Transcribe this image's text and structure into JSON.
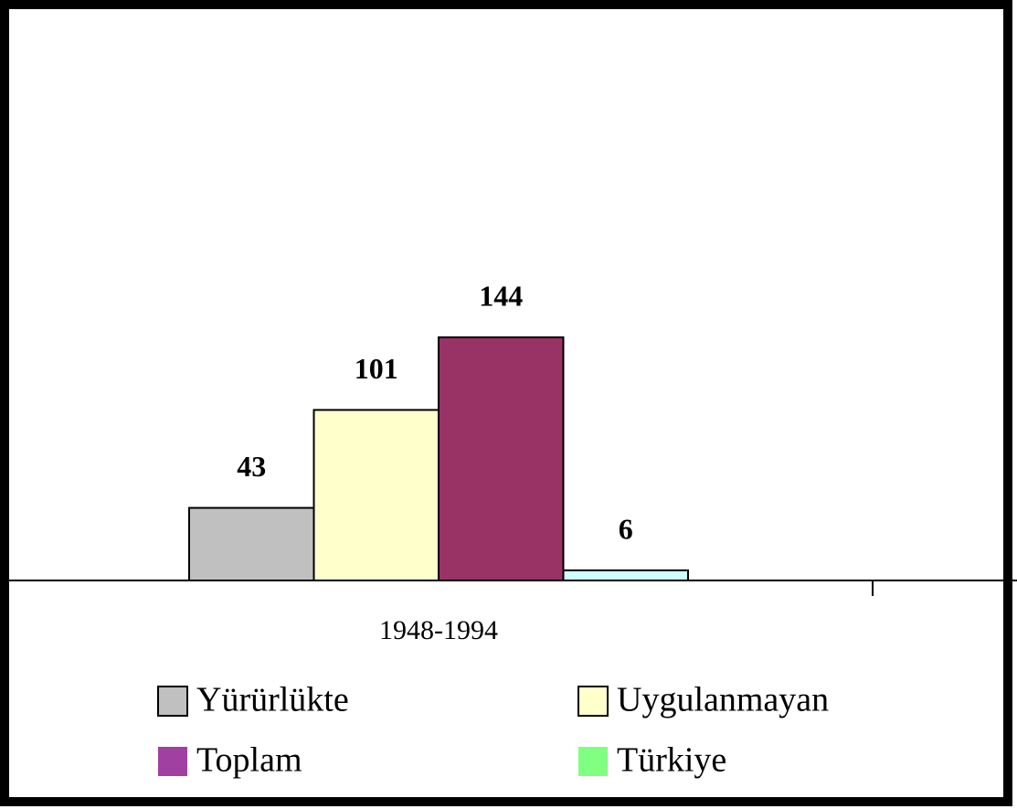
{
  "chart_data": {
    "type": "bar",
    "categories": [
      "1948-1994"
    ],
    "series": [
      {
        "name": "Yürürlükte",
        "color": "#c0c0c0",
        "legend_color": "#c0c0c0",
        "values": [
          43
        ]
      },
      {
        "name": "Uygulanmayan",
        "color": "#ffffcc",
        "legend_color": "#ffffcc",
        "values": [
          101
        ]
      },
      {
        "name": "Toplam",
        "color": "#993366",
        "legend_color": "#a040a0",
        "values": [
          144
        ]
      },
      {
        "name": "Türkiye",
        "color": "#ccffff",
        "legend_color": "#80ff80",
        "values": [
          6
        ]
      }
    ]
  }
}
